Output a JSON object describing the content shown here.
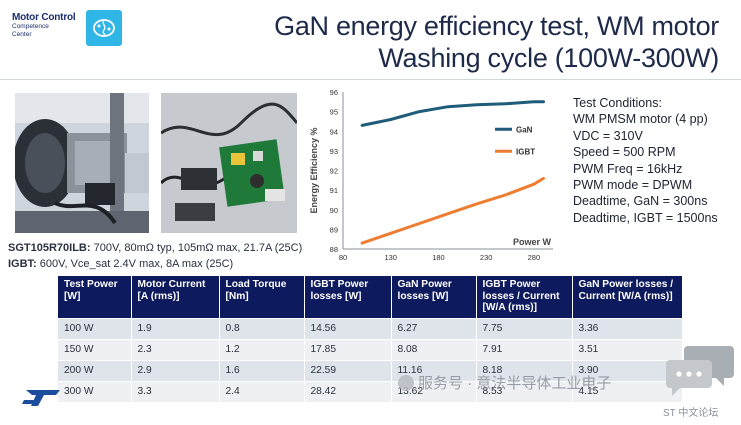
{
  "brand": {
    "name": "Motor Control",
    "sub_line1": "Competence",
    "sub_line2": "Center",
    "logo_icon": "brain-icon",
    "accent": "#2fb5e6"
  },
  "title": {
    "line1": "GaN energy efficiency test, WM motor",
    "line2": "Washing cycle (100W-300W)"
  },
  "photos": {
    "left_icon": "motor-test-bench-photo",
    "right_icon": "inverter-board-photo"
  },
  "parts": {
    "line1_name": "SGT105R70ILB:",
    "line1_text": " 700V, 80mΩ typ, 105mΩ max, 21.7A (25C)",
    "line2_name": "IGBT:",
    "line2_text": " 600V, Vce_sat 2.4V max, 8A max (25C)"
  },
  "chart_data": {
    "type": "line",
    "ylabel": "Energy Efficiency %",
    "xlabel": "Power W",
    "xlim": [
      80,
      300
    ],
    "ylim": [
      88,
      96
    ],
    "xticks": [
      80,
      130,
      180,
      230,
      280
    ],
    "yticks": [
      88,
      89,
      90,
      91,
      92,
      93,
      94,
      95,
      96
    ],
    "grid": false,
    "legend_position": "right-middle",
    "series": [
      {
        "name": "GaN",
        "color": "#1f5c7a",
        "points": [
          [
            100,
            94.3
          ],
          [
            130,
            94.6
          ],
          [
            160,
            95.0
          ],
          [
            190,
            95.25
          ],
          [
            220,
            95.35
          ],
          [
            250,
            95.4
          ],
          [
            280,
            95.5
          ],
          [
            290,
            95.5
          ]
        ]
      },
      {
        "name": "IGBT",
        "color": "#ef7d31",
        "points": [
          [
            100,
            88.3
          ],
          [
            130,
            88.8
          ],
          [
            160,
            89.3
          ],
          [
            190,
            89.8
          ],
          [
            220,
            90.3
          ],
          [
            250,
            90.75
          ],
          [
            280,
            91.3
          ],
          [
            290,
            91.6
          ]
        ]
      }
    ]
  },
  "conditions": [
    "Test Conditions:",
    "WM PMSM motor (4 pp)",
    "VDC = 310V",
    "Speed = 500 RPM",
    "PWM Freq = 16kHz",
    "PWM mode = DPWM",
    "Deadtime, GaN = 300ns",
    "Deadtime, IGBT = 1500ns"
  ],
  "table": {
    "headers": [
      "Test Power [W]",
      "Motor Current [A (rms)]",
      "Load Torque [Nm]",
      "IGBT Power losses [W]",
      "GaN Power losses [W]",
      "IGBT Power losses / Current [W/A (rms)]",
      "GaN Power losses / Current [W/A (rms)]"
    ],
    "rows": [
      [
        "100 W",
        "1.9",
        "0.8",
        "14.56",
        "6.27",
        "7.75",
        "3.36"
      ],
      [
        "150 W",
        "2.3",
        "1.2",
        "17.85",
        "8.08",
        "7.91",
        "3.51"
      ],
      [
        "200 W",
        "2.9",
        "1.6",
        "22.59",
        "11.16",
        "8.18",
        "3.90"
      ],
      [
        "300 W",
        "3.3",
        "2.4",
        "28.42",
        "13.62",
        "8.53",
        "4.15"
      ]
    ],
    "header_color": "#0e1a5e"
  },
  "footer": {
    "logo_icon": "st-logo",
    "watermark": "服务号 · 意法半导体工业电子",
    "forum_icon": "chat-bubble-icon",
    "forum_text": "ST 中文论坛"
  }
}
